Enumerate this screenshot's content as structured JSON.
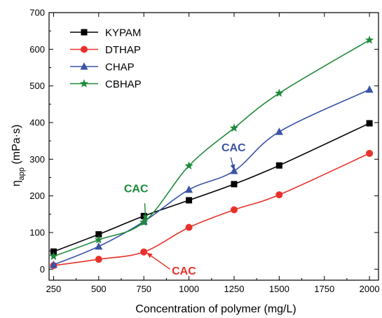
{
  "chart_data": {
    "type": "line",
    "title": "",
    "xlabel": "Concentration of polymer (mg/L)",
    "ylabel": {
      "main": "η",
      "sub": "app",
      "rest": " (mPa·s)"
    },
    "xlim": [
      225,
      2050
    ],
    "ylim": [
      -30,
      700
    ],
    "xticks": [
      250,
      500,
      750,
      1000,
      1250,
      1500,
      1750,
      2000
    ],
    "yticks": [
      0,
      100,
      200,
      300,
      400,
      500,
      600,
      700
    ],
    "grid": false,
    "legend_position": "top-left",
    "x": [
      250,
      500,
      750,
      1000,
      1250,
      1500,
      2000
    ],
    "series": [
      {
        "name": "KYPAM",
        "color": "#000000",
        "marker": "square",
        "values": [
          48,
          95,
          145,
          188,
          232,
          283,
          398
        ]
      },
      {
        "name": "DTHAP",
        "color": "#e8312a",
        "marker": "circle",
        "values": [
          10,
          27,
          47,
          114,
          162,
          203,
          316
        ]
      },
      {
        "name": "CHAP",
        "color": "#3a53a4",
        "marker": "triangle",
        "values": [
          12,
          62,
          130,
          217,
          268,
          375,
          490
        ]
      },
      {
        "name": "CBHAP",
        "color": "#1f8a3b",
        "marker": "star",
        "values": [
          35,
          80,
          128,
          282,
          385,
          480,
          625
        ]
      }
    ],
    "annotations": [
      {
        "text": "CAC",
        "color": "#1f8a3b",
        "text_at": [
          640,
          210
        ],
        "arrow_from": [
          755,
          180
        ],
        "arrow_to": [
          760,
          132
        ]
      },
      {
        "text": "CAC",
        "color": "#3a53a4",
        "text_at": [
          1180,
          322
        ],
        "arrow_from": [
          1232,
          305
        ],
        "arrow_to": [
          1250,
          270
        ]
      },
      {
        "text": "CAC",
        "color": "#e8312a",
        "text_at": [
          905,
          -15
        ],
        "arrow_from": [
          895,
          0
        ],
        "arrow_to": [
          765,
          45
        ]
      }
    ]
  }
}
